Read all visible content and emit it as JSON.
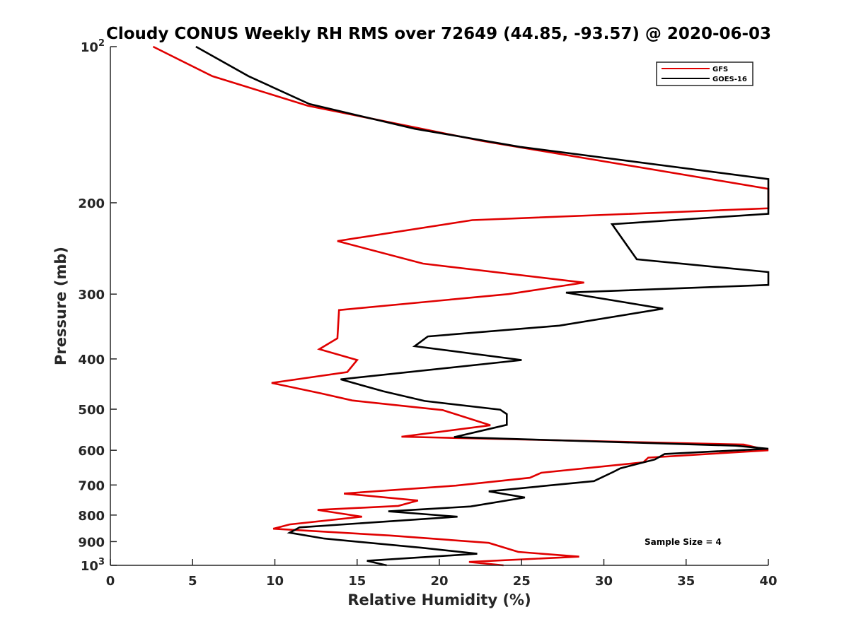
{
  "chart_data": {
    "type": "line",
    "title": "Cloudy CONUS Weekly RH RMS over 72649 (44.85, -93.57) @ 2020-06-03",
    "xlabel": "Relative Humidity (%)",
    "ylabel": "Pressure (mb)",
    "xlim": [
      0,
      40
    ],
    "ylim": [
      100,
      1000
    ],
    "y_scale": "log",
    "y_reversed": true,
    "x_ticks": [
      "0",
      "5",
      "10",
      "15",
      "20",
      "25",
      "30",
      "35",
      "40"
    ],
    "y_ticks": [
      {
        "value": 100,
        "base": "10",
        "exp": "2"
      },
      {
        "value": 200,
        "label": "200"
      },
      {
        "value": 300,
        "label": "300"
      },
      {
        "value": 400,
        "label": "400"
      },
      {
        "value": 500,
        "label": "500"
      },
      {
        "value": 600,
        "label": "600"
      },
      {
        "value": 700,
        "label": "700"
      },
      {
        "value": 800,
        "label": "800"
      },
      {
        "value": 900,
        "label": "900"
      },
      {
        "value": 1000,
        "base": "10",
        "exp": "3"
      }
    ],
    "grid": false,
    "legend_position": "top-right",
    "annotation": "Sample Size = 4",
    "series": [
      {
        "name": "GFS",
        "color": "#e00000",
        "points": [
          [
            2.6,
            100
          ],
          [
            6.2,
            114
          ],
          [
            12.0,
            130
          ],
          [
            22.6,
            152
          ],
          [
            40.0,
            188
          ],
          [
            40.0,
            205
          ],
          [
            22.0,
            216
          ],
          [
            13.8,
            237
          ],
          [
            19.0,
            262
          ],
          [
            28.8,
            285
          ],
          [
            24.2,
            300
          ],
          [
            13.9,
            322
          ],
          [
            13.8,
            365
          ],
          [
            12.7,
            383
          ],
          [
            15.0,
            402
          ],
          [
            14.4,
            424
          ],
          [
            9.8,
            445
          ],
          [
            12.8,
            466
          ],
          [
            14.7,
            481
          ],
          [
            20.2,
            502
          ],
          [
            23.1,
            537
          ],
          [
            17.7,
            565
          ],
          [
            38.5,
            585
          ],
          [
            40.0,
            600
          ],
          [
            32.7,
            620
          ],
          [
            32.4,
            633
          ],
          [
            26.2,
            663
          ],
          [
            25.5,
            678
          ],
          [
            21.0,
            702
          ],
          [
            14.2,
            727
          ],
          [
            18.7,
            750
          ],
          [
            17.5,
            768
          ],
          [
            12.6,
            782
          ],
          [
            15.3,
            806
          ],
          [
            10.9,
            834
          ],
          [
            9.9,
            850
          ],
          [
            17.0,
            876
          ],
          [
            23.0,
            905
          ],
          [
            24.8,
            942
          ],
          [
            28.5,
            962
          ],
          [
            21.8,
            985
          ],
          [
            23.9,
            1000
          ]
        ]
      },
      {
        "name": "GOES-16",
        "color": "#000000",
        "points": [
          [
            5.2,
            100
          ],
          [
            8.4,
            114
          ],
          [
            12.1,
            129
          ],
          [
            18.5,
            144
          ],
          [
            24.9,
            156
          ],
          [
            40.0,
            180
          ],
          [
            40.0,
            210
          ],
          [
            30.5,
            220
          ],
          [
            32.0,
            257
          ],
          [
            40.0,
            272
          ],
          [
            40.0,
            288
          ],
          [
            27.7,
            298
          ],
          [
            33.6,
            320
          ],
          [
            27.3,
            345
          ],
          [
            19.3,
            362
          ],
          [
            18.5,
            378
          ],
          [
            25.0,
            402
          ],
          [
            14.0,
            438
          ],
          [
            16.6,
            462
          ],
          [
            19.1,
            482
          ],
          [
            23.7,
            501
          ],
          [
            24.1,
            511
          ],
          [
            24.1,
            536
          ],
          [
            20.9,
            566
          ],
          [
            38.0,
            588
          ],
          [
            40.0,
            596
          ],
          [
            33.7,
            610
          ],
          [
            33.1,
            625
          ],
          [
            31.0,
            650
          ],
          [
            30.6,
            660
          ],
          [
            29.4,
            688
          ],
          [
            23.0,
            720
          ],
          [
            25.2,
            740
          ],
          [
            21.9,
            770
          ],
          [
            16.9,
            787
          ],
          [
            21.1,
            806
          ],
          [
            11.5,
            845
          ],
          [
            10.9,
            865
          ],
          [
            13.0,
            888
          ],
          [
            18.9,
            925
          ],
          [
            22.3,
            950
          ],
          [
            15.6,
            980
          ],
          [
            16.8,
            1000
          ]
        ]
      }
    ]
  }
}
